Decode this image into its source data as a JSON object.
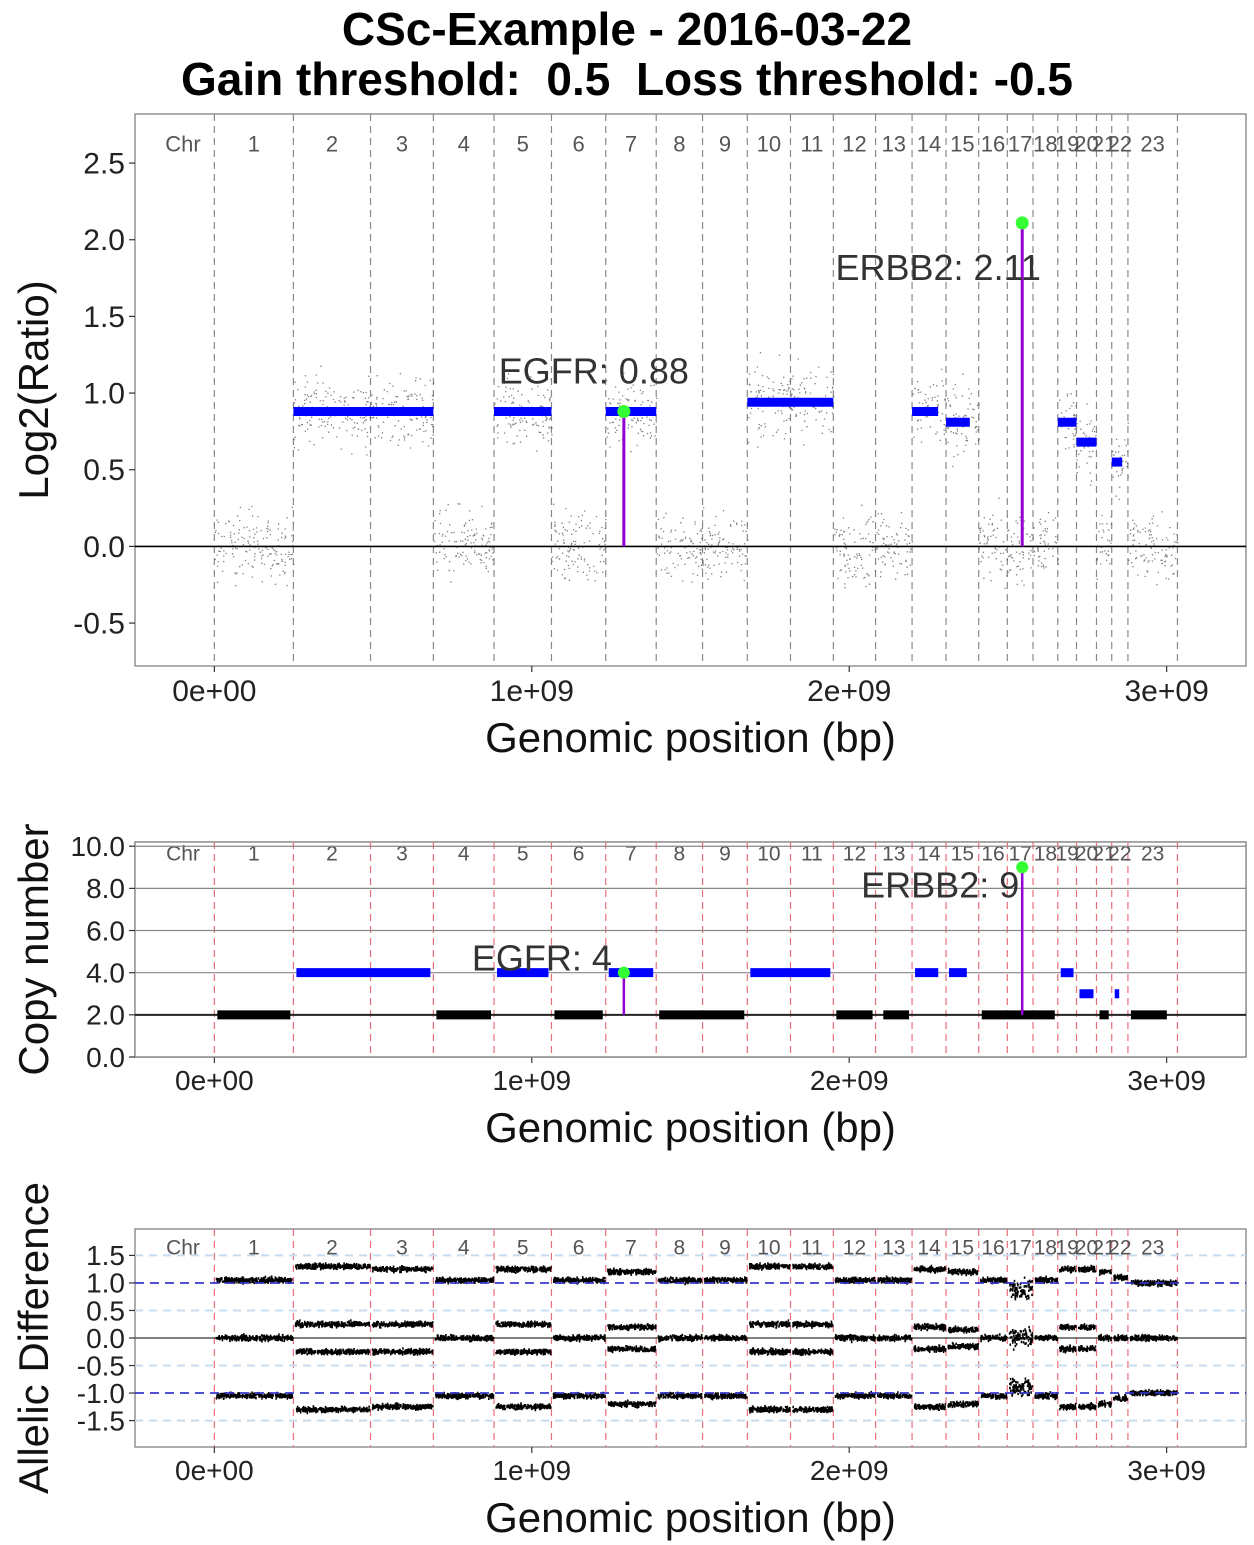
{
  "title_line1": "CSc-Example - 2016-03-22",
  "title_line2": "Gain threshold:  0.5  Loss threshold: -0.5",
  "chromosomes": {
    "header": "Chr",
    "labels": [
      "1",
      "2",
      "3",
      "4",
      "5",
      "6",
      "7",
      "8",
      "9",
      "10",
      "11",
      "12",
      "13",
      "14",
      "15",
      "16",
      "17",
      "18",
      "19",
      "20",
      "21",
      "22",
      "23"
    ],
    "boundaries_bp": [
      0,
      249000000,
      492000000,
      690000000,
      881000000,
      1062000000,
      1233000000,
      1392000000,
      1538000000,
      1679000000,
      1815000000,
      1950000000,
      2083000000,
      2198000000,
      2305000000,
      2408000000,
      2498000000,
      2579000000,
      2657000000,
      2716000000,
      2779000000,
      2827000000,
      2878000000,
      3034000000
    ]
  },
  "colors": {
    "segment": "#0000ff",
    "lollipop_stem": "#9400d3",
    "lollipop_head": "#33ff33",
    "chr_line_top": "#888888",
    "chr_line_red": "#e8707a",
    "ai_dashed_blue": "#3333cc",
    "ai_dashed_light": "#c8dcf0"
  },
  "chart_data": [
    {
      "id": "log2",
      "type": "scatter",
      "xlabel": "Genomic position (bp)",
      "ylabel": "Log2(Ratio)",
      "x_ticks": [
        "0e+00",
        "1e+09",
        "2e+09",
        "3e+09"
      ],
      "x_tick_values": [
        0,
        1000000000,
        2000000000,
        3000000000
      ],
      "xlim": [
        -250000000,
        3250000000
      ],
      "y_ticks": [
        "-0.5",
        "0.0",
        "0.5",
        "1.0",
        "1.5",
        "2.0",
        "2.5"
      ],
      "y_tick_values": [
        -0.5,
        0.0,
        0.5,
        1.0,
        1.5,
        2.0,
        2.5
      ],
      "ylim": [
        -0.78,
        2.82
      ],
      "segments": [
        {
          "start": 249000000,
          "end": 690000000,
          "value": 0.88
        },
        {
          "start": 881000000,
          "end": 1062000000,
          "value": 0.88
        },
        {
          "start": 1233000000,
          "end": 1392000000,
          "value": 0.88
        },
        {
          "start": 1679000000,
          "end": 1950000000,
          "value": 0.94
        },
        {
          "start": 2198000000,
          "end": 2280000000,
          "value": 0.88
        },
        {
          "start": 2305000000,
          "end": 2380000000,
          "value": 0.81
        },
        {
          "start": 2657000000,
          "end": 2716000000,
          "value": 0.81
        },
        {
          "start": 2716000000,
          "end": 2779000000,
          "value": 0.68
        },
        {
          "start": 2827000000,
          "end": 2860000000,
          "value": 0.55
        }
      ],
      "genes": [
        {
          "label": "EGFR: 0.88",
          "position": 1290000000,
          "value": 0.88
        },
        {
          "label": "ERBB2: 2.11",
          "position": 2545000000,
          "value": 2.11
        }
      ],
      "scatter_note": "dense background of probe-level log2 ratios, spread around segment means"
    },
    {
      "id": "copynumber",
      "type": "line",
      "xlabel": "Genomic position (bp)",
      "ylabel": "Copy number",
      "x_ticks": [
        "0e+00",
        "1e+09",
        "2e+09",
        "3e+09"
      ],
      "x_tick_values": [
        0,
        1000000000,
        2000000000,
        3000000000
      ],
      "xlim": [
        -250000000,
        3250000000
      ],
      "y_ticks": [
        "0.0",
        "2.0",
        "4.0",
        "6.0",
        "8.0",
        "10.0"
      ],
      "y_tick_values": [
        0,
        2,
        4,
        6,
        8,
        10
      ],
      "ylim": [
        0,
        10.2
      ],
      "gain_segments": [
        {
          "start": 249000000,
          "end": 690000000,
          "value": 4
        },
        {
          "start": 881000000,
          "end": 1062000000,
          "value": 4
        },
        {
          "start": 1233000000,
          "end": 1392000000,
          "value": 4
        },
        {
          "start": 1679000000,
          "end": 1950000000,
          "value": 4
        },
        {
          "start": 2198000000,
          "end": 2290000000,
          "value": 4
        },
        {
          "start": 2305000000,
          "end": 2380000000,
          "value": 4
        },
        {
          "start": 2657000000,
          "end": 2716000000,
          "value": 4
        },
        {
          "start": 2716000000,
          "end": 2779000000,
          "value": 3
        },
        {
          "start": 2827000000,
          "end": 2860000000,
          "value": 3
        }
      ],
      "neutral_segments": [
        {
          "start": 0,
          "end": 249000000,
          "value": 2
        },
        {
          "start": 690000000,
          "end": 881000000,
          "value": 2
        },
        {
          "start": 1062000000,
          "end": 1233000000,
          "value": 2
        },
        {
          "start": 1392000000,
          "end": 1679000000,
          "value": 2
        },
        {
          "start": 1950000000,
          "end": 2083000000,
          "value": 2
        },
        {
          "start": 2098000000,
          "end": 2198000000,
          "value": 2
        },
        {
          "start": 2408000000,
          "end": 2657000000,
          "value": 2
        },
        {
          "start": 2779000000,
          "end": 2827000000,
          "value": 2
        },
        {
          "start": 2878000000,
          "end": 3010000000,
          "value": 2
        }
      ],
      "genes": [
        {
          "label": "EGFR: 4",
          "position": 1290000000,
          "value": 4
        },
        {
          "label": "ERBB2: 9",
          "position": 2545000000,
          "value": 9
        }
      ]
    },
    {
      "id": "allelic",
      "type": "scatter",
      "xlabel": "Genomic position (bp)",
      "ylabel": "Allelic Difference",
      "x_ticks": [
        "0e+00",
        "1e+09",
        "2e+09",
        "3e+09"
      ],
      "x_tick_values": [
        0,
        1000000000,
        2000000000,
        3000000000
      ],
      "xlim": [
        -250000000,
        3250000000
      ],
      "y_ticks": [
        "-1.5",
        "-1.0",
        "-0.5",
        "0.0",
        "0.5",
        "1.0",
        "1.5"
      ],
      "y_tick_values": [
        -1.5,
        -1.0,
        -0.5,
        0.0,
        0.5,
        1.0,
        1.5
      ],
      "ylim": [
        -1.98,
        1.98
      ],
      "reference_lines": [
        1.0,
        -1.0
      ],
      "light_reference_lines": [
        1.5,
        0.5,
        -0.5,
        -1.5
      ],
      "band_levels": [
        {
          "chr": "1",
          "upper": 1.05,
          "middle": 0.0,
          "lower": -1.05
        },
        {
          "chr": "2",
          "upper": 1.3,
          "middle": 0.25,
          "lower": -1.3
        },
        {
          "chr": "3",
          "upper": 1.25,
          "middle": 0.25,
          "lower": -1.25
        },
        {
          "chr": "4",
          "upper": 1.05,
          "middle": 0.0,
          "lower": -1.05
        },
        {
          "chr": "5",
          "upper": 1.25,
          "middle": 0.25,
          "lower": -1.25
        },
        {
          "chr": "6",
          "upper": 1.05,
          "middle": 0.0,
          "lower": -1.05
        },
        {
          "chr": "7",
          "upper": 1.2,
          "middle": 0.2,
          "lower": -1.2
        },
        {
          "chr": "8",
          "upper": 1.05,
          "middle": 0.0,
          "lower": -1.05
        },
        {
          "chr": "9",
          "upper": 1.05,
          "middle": 0.0,
          "lower": -1.05
        },
        {
          "chr": "10",
          "upper": 1.3,
          "middle": 0.25,
          "lower": -1.3
        },
        {
          "chr": "11",
          "upper": 1.3,
          "middle": 0.25,
          "lower": -1.3
        },
        {
          "chr": "12",
          "upper": 1.05,
          "middle": 0.0,
          "lower": -1.05
        },
        {
          "chr": "13",
          "upper": 1.05,
          "middle": 0.0,
          "lower": -1.05
        },
        {
          "chr": "14",
          "upper": 1.25,
          "middle": 0.2,
          "lower": -1.25
        },
        {
          "chr": "15",
          "upper": 1.2,
          "middle": 0.15,
          "lower": -1.2
        },
        {
          "chr": "16",
          "upper": 1.05,
          "middle": 0.0,
          "lower": -1.05
        },
        {
          "chr": "17",
          "upper": 0.9,
          "middle": 0.0,
          "lower": -0.9
        },
        {
          "chr": "18",
          "upper": 1.05,
          "middle": 0.0,
          "lower": -1.05
        },
        {
          "chr": "19",
          "upper": 1.25,
          "middle": 0.2,
          "lower": -1.25
        },
        {
          "chr": "20",
          "upper": 1.25,
          "middle": 0.2,
          "lower": -1.25
        },
        {
          "chr": "21",
          "upper": 1.2,
          "middle": 0.0,
          "lower": -1.2
        },
        {
          "chr": "22",
          "upper": 1.1,
          "middle": 0.0,
          "lower": -1.1
        },
        {
          "chr": "23",
          "upper": 1.0,
          "middle": 0.0,
          "lower": -1.0
        }
      ]
    }
  ]
}
